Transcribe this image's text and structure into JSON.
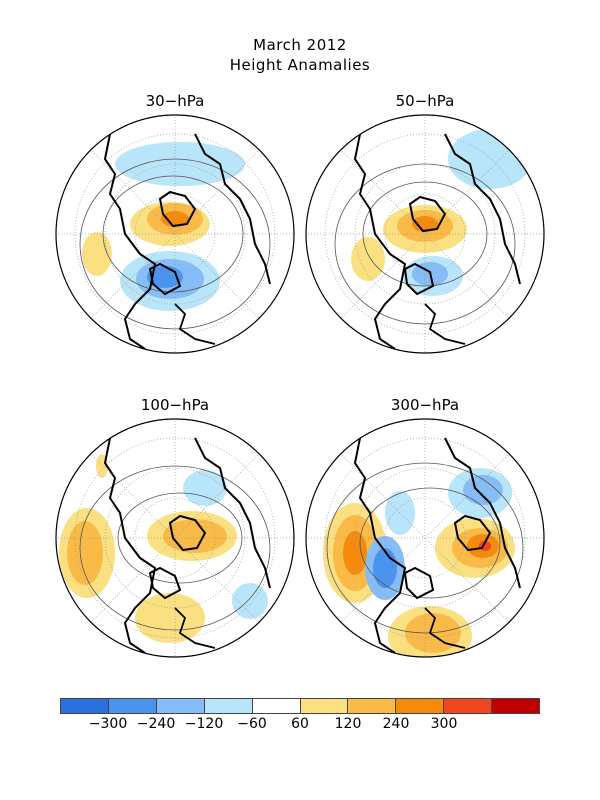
{
  "header": {
    "title_line1": "March 2012",
    "title_line2": "Height Anamalies"
  },
  "panels": [
    {
      "label": "30-hPa"
    },
    {
      "label": "50-hPa"
    },
    {
      "label": "100-hPa"
    },
    {
      "label": "300-hPa"
    }
  ],
  "colors": {
    "neg300": "#2a6fe0",
    "neg240": "#4a93ee",
    "neg120": "#86bdf7",
    "neg60": "#b9e5fa",
    "neutral": "#ffffff",
    "pos60": "#fbe082",
    "pos120": "#f9ba48",
    "pos240": "#f58b0c",
    "pos300": "#f2441e",
    "pos_max": "#c00000"
  },
  "legend": {
    "ticks": [
      "-300",
      "-240",
      "-120",
      "-60",
      "60",
      "120",
      "240",
      "300"
    ]
  }
}
